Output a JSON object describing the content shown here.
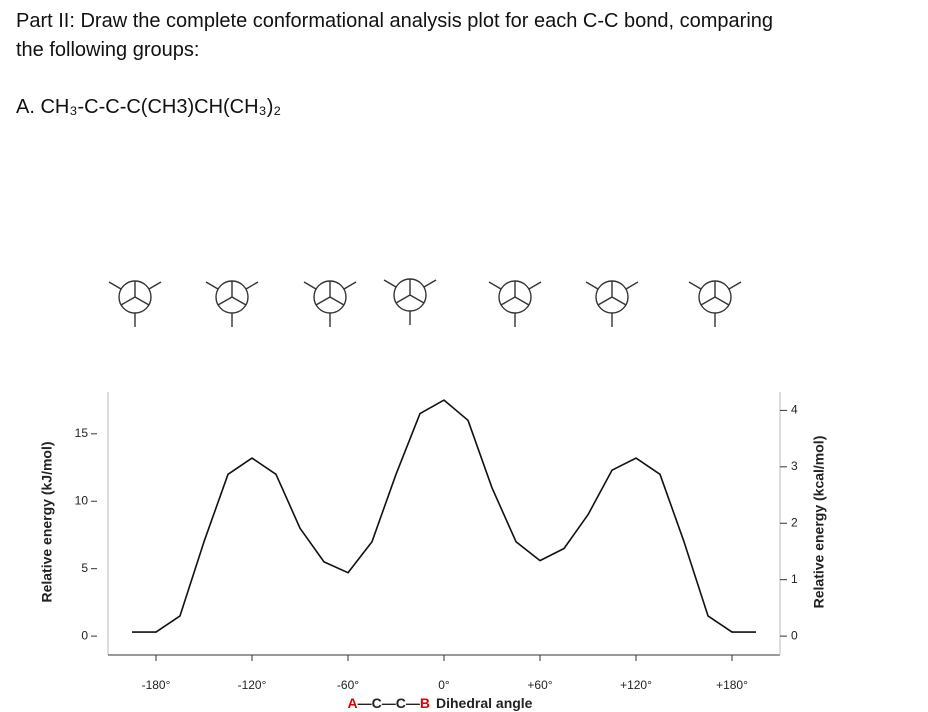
{
  "header": {
    "lines": [
      "Part II: Draw the complete conformational analysis plot for each C-C bond, comparing",
      "the following groups:"
    ],
    "item": "A.  CH₃-C-C-C(CH3)CH(CH₃)₂"
  },
  "chart_data": {
    "type": "line",
    "y_label": "Relative energy (kJ/mol)",
    "y2_label": "Relative energy (kcal/mol)",
    "x_label": {
      "a": "A",
      "bond": "—C—C—",
      "b": "B",
      "text": "Dihedral angle"
    },
    "x": [
      -195,
      -180,
      -165,
      -150,
      -135,
      -120,
      -105,
      -90,
      -75,
      -60,
      -45,
      -30,
      -15,
      0,
      15,
      30,
      45,
      60,
      75,
      90,
      105,
      120,
      135,
      150,
      165,
      180,
      195
    ],
    "values": [
      0.3,
      0.3,
      1.5,
      7,
      12,
      13.2,
      12,
      8,
      5.5,
      4.7,
      7,
      12,
      16.5,
      17.5,
      16,
      11,
      7,
      5.6,
      6.5,
      9,
      12.3,
      13.2,
      12,
      7,
      1.5,
      0.3,
      0.3
    ],
    "color": "#111111",
    "xlim": [
      -210,
      210
    ],
    "xticks": [
      {
        "value": -180,
        "label": "-180°"
      },
      {
        "value": -120,
        "label": "-120°"
      },
      {
        "value": -60,
        "label": "-60°"
      },
      {
        "value": 0,
        "label": "0°"
      },
      {
        "value": 60,
        "label": "+60°"
      },
      {
        "value": 120,
        "label": "+120°"
      },
      {
        "value": 180,
        "label": "+180°"
      }
    ],
    "ylim": [
      -1.4,
      18.1
    ],
    "yticks": [
      0,
      5,
      10,
      15
    ],
    "y2lim": [
      -0.335,
      4.326
    ],
    "y2ticks": [
      0,
      1,
      2,
      3,
      4
    ]
  }
}
